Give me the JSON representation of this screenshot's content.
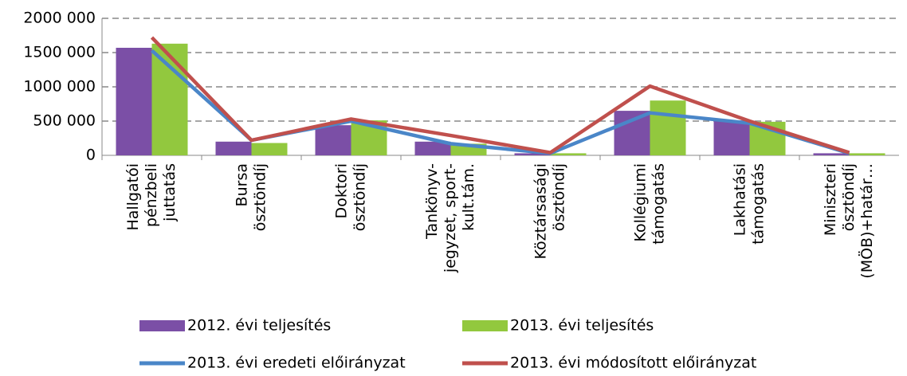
{
  "chart_data": {
    "type": "bar_line",
    "categories": [
      [
        "Hallgatói",
        "pénzbeli",
        "juttatás"
      ],
      [
        "Bursa",
        "ösztöndíj"
      ],
      [
        "Doktori",
        "ösztöndíj"
      ],
      [
        "Tankönyv-",
        "jegyzet, sport-",
        "kult.tám."
      ],
      [
        "Köztársasági",
        "ösztöndíj"
      ],
      [
        "Kollégiumi",
        "támogatás"
      ],
      [
        "Lakhatási",
        "támogatás"
      ],
      [
        "Miniszteri",
        "ösztöndíj",
        "(MÖB)+határ…"
      ]
    ],
    "series": [
      {
        "name": "2012. évi teljesítés",
        "kind": "bar",
        "color": "#7b4fa6",
        "values": [
          1570000,
          200000,
          440000,
          200000,
          30000,
          650000,
          510000,
          30000
        ]
      },
      {
        "name": "2013. évi teljesítés",
        "kind": "bar",
        "color": "#92c83e",
        "values": [
          1630000,
          180000,
          510000,
          170000,
          30000,
          800000,
          490000,
          30000
        ]
      },
      {
        "name": "2013. évi eredeti előirányzat",
        "kind": "line",
        "color": "#4a86c8",
        "values": [
          1530000,
          220000,
          500000,
          170000,
          30000,
          620000,
          470000,
          30000
        ]
      },
      {
        "name": "2013. évi módosított előirányzat",
        "kind": "line",
        "color": "#c0504d",
        "values": [
          1720000,
          220000,
          530000,
          290000,
          40000,
          1010000,
          500000,
          40000
        ]
      }
    ],
    "ylim": [
      0,
      2000000
    ],
    "yticks": [
      0,
      {
        "value": 500000,
        "label": "500 000"
      },
      {
        "value": 1000000,
        "label": "1000 000"
      },
      {
        "value": 1500000,
        "label": "1500 000"
      },
      {
        "value": 2000000,
        "label": "2000 000"
      }
    ],
    "grid": true
  }
}
